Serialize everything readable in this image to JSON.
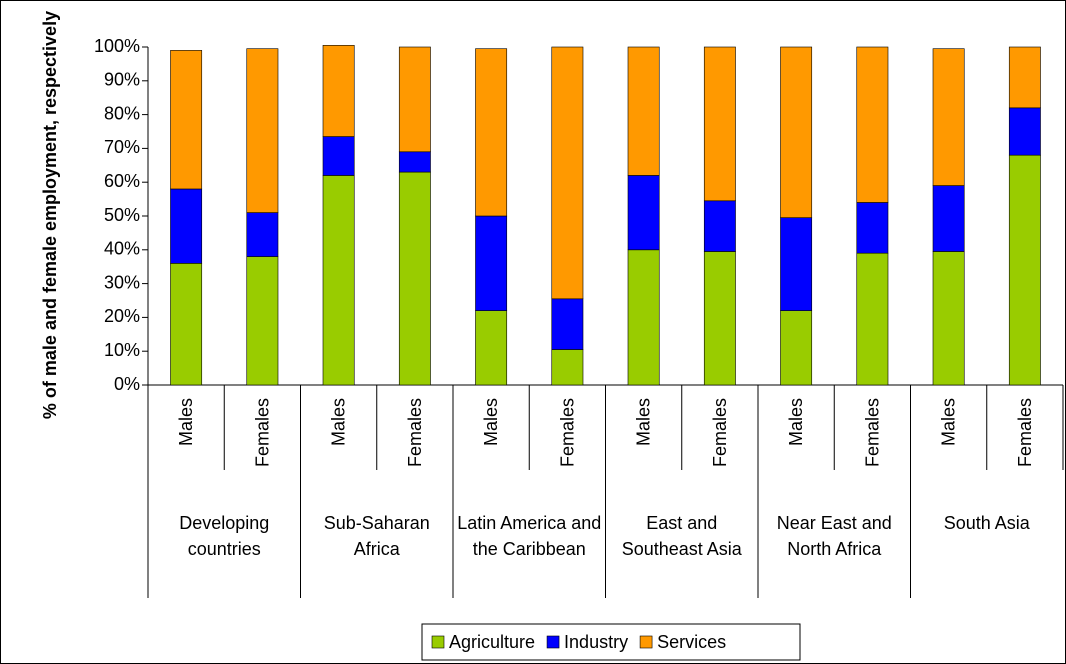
{
  "chart_data": {
    "type": "stacked_bar",
    "y_label": "% of male and female employment, respectively",
    "categories": [
      "Males",
      "Females",
      "Males",
      "Females",
      "Males",
      "Females",
      "Males",
      "Females",
      "Males",
      "Females",
      "Males",
      "Females"
    ],
    "groups": [
      "Developing countries",
      "Sub-Saharan Africa",
      "Latin America and the Caribbean",
      "East and Southeast Asia",
      "Near East and North Africa",
      "South Asia"
    ],
    "series": [
      {
        "name": "Agriculture",
        "color": "#99cc00",
        "values": [
          36,
          38,
          62,
          63,
          22,
          10.5,
          40,
          39.5,
          22,
          39,
          39.5,
          68
        ]
      },
      {
        "name": "Industry",
        "color": "#0000ff",
        "values": [
          22,
          13,
          11.5,
          6,
          28,
          15,
          22,
          15,
          27.5,
          15,
          19.5,
          14
        ]
      },
      {
        "name": "Services",
        "color": "#ff9900",
        "values": [
          41,
          48.5,
          27,
          31,
          49.5,
          74.5,
          38,
          45.5,
          50.5,
          46,
          40.5,
          18
        ]
      }
    ],
    "ylim": [
      0,
      100
    ],
    "yticks": [
      {
        "value": 0,
        "label": "0%"
      },
      {
        "value": 10,
        "label": "10%"
      },
      {
        "value": 20,
        "label": "20%"
      },
      {
        "value": 30,
        "label": "30%"
      },
      {
        "value": 40,
        "label": "40%"
      },
      {
        "value": 50,
        "label": "50%"
      },
      {
        "value": 60,
        "label": "60%"
      },
      {
        "value": 70,
        "label": "70%"
      },
      {
        "value": 80,
        "label": "80%"
      },
      {
        "value": 90,
        "label": "90%"
      },
      {
        "value": 100,
        "label": "100%"
      }
    ],
    "legend": "bottom"
  }
}
